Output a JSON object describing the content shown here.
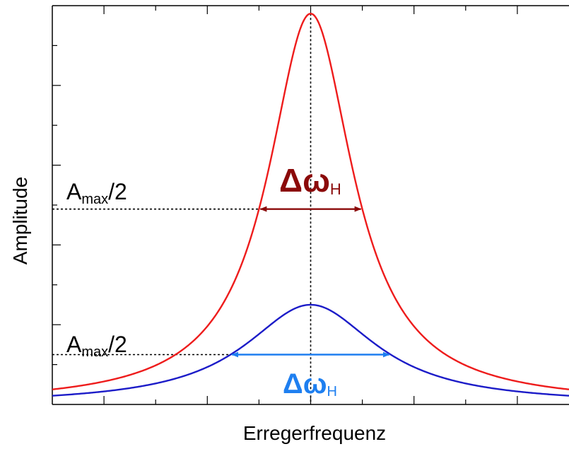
{
  "chart_data": {
    "type": "line",
    "title": "",
    "xlabel": "Erregerfrequenz",
    "ylabel": "Amplitude",
    "xlim": [
      0,
      10
    ],
    "ylim": [
      0,
      1.0
    ],
    "resonance_x": 5.0,
    "grid": false,
    "legend": "none",
    "series": [
      {
        "color": "#ee1c1c",
        "peak": 0.98,
        "half_width": 1.0
      },
      {
        "color": "#1c1cc8",
        "peak": 0.25,
        "half_width": 1.55
      }
    ],
    "annotations": [
      {
        "label_main": "A",
        "label_sub": "max",
        "label_tail": "/2",
        "series": 0,
        "arrow_color": "#8b0a0a",
        "width_main": "Δω",
        "width_sub": "H"
      },
      {
        "label_main": "A",
        "label_sub": "max",
        "label_tail": "/2",
        "series": 1,
        "arrow_color": "#1e7ff0",
        "width_main": "Δω",
        "width_sub": "H"
      }
    ]
  }
}
